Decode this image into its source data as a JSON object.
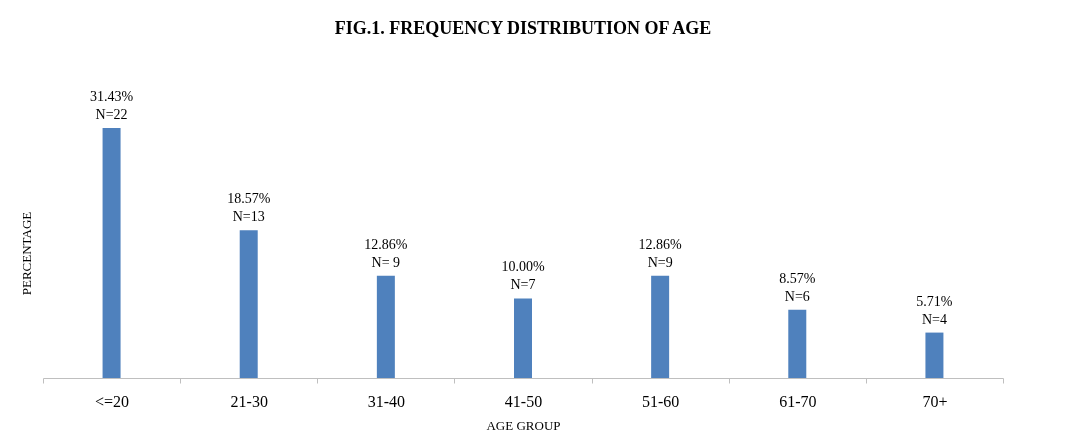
{
  "chart_data": {
    "type": "bar",
    "title": "FIG.1. FREQUENCY DISTRIBUTION OF AGE",
    "xlabel": "AGE GROUP",
    "ylabel": "PERCENTAGE",
    "categories": [
      "<=20",
      "21-30",
      "31-40",
      "41-50",
      "51-60",
      "61-70",
      "70+"
    ],
    "values": [
      31.43,
      18.57,
      12.86,
      10.0,
      12.86,
      8.57,
      5.71
    ],
    "color": "#4f81bd",
    "value_labels": [
      "31.43%\nN=22",
      "18.57%\nN=13",
      "12.86%\nN= 9",
      "10.00%\nN=7",
      "12.86%\nN=9",
      "8.57%\nN=6",
      "5.71%\nN=4"
    ],
    "grid": false,
    "tick_labels": "x"
  }
}
